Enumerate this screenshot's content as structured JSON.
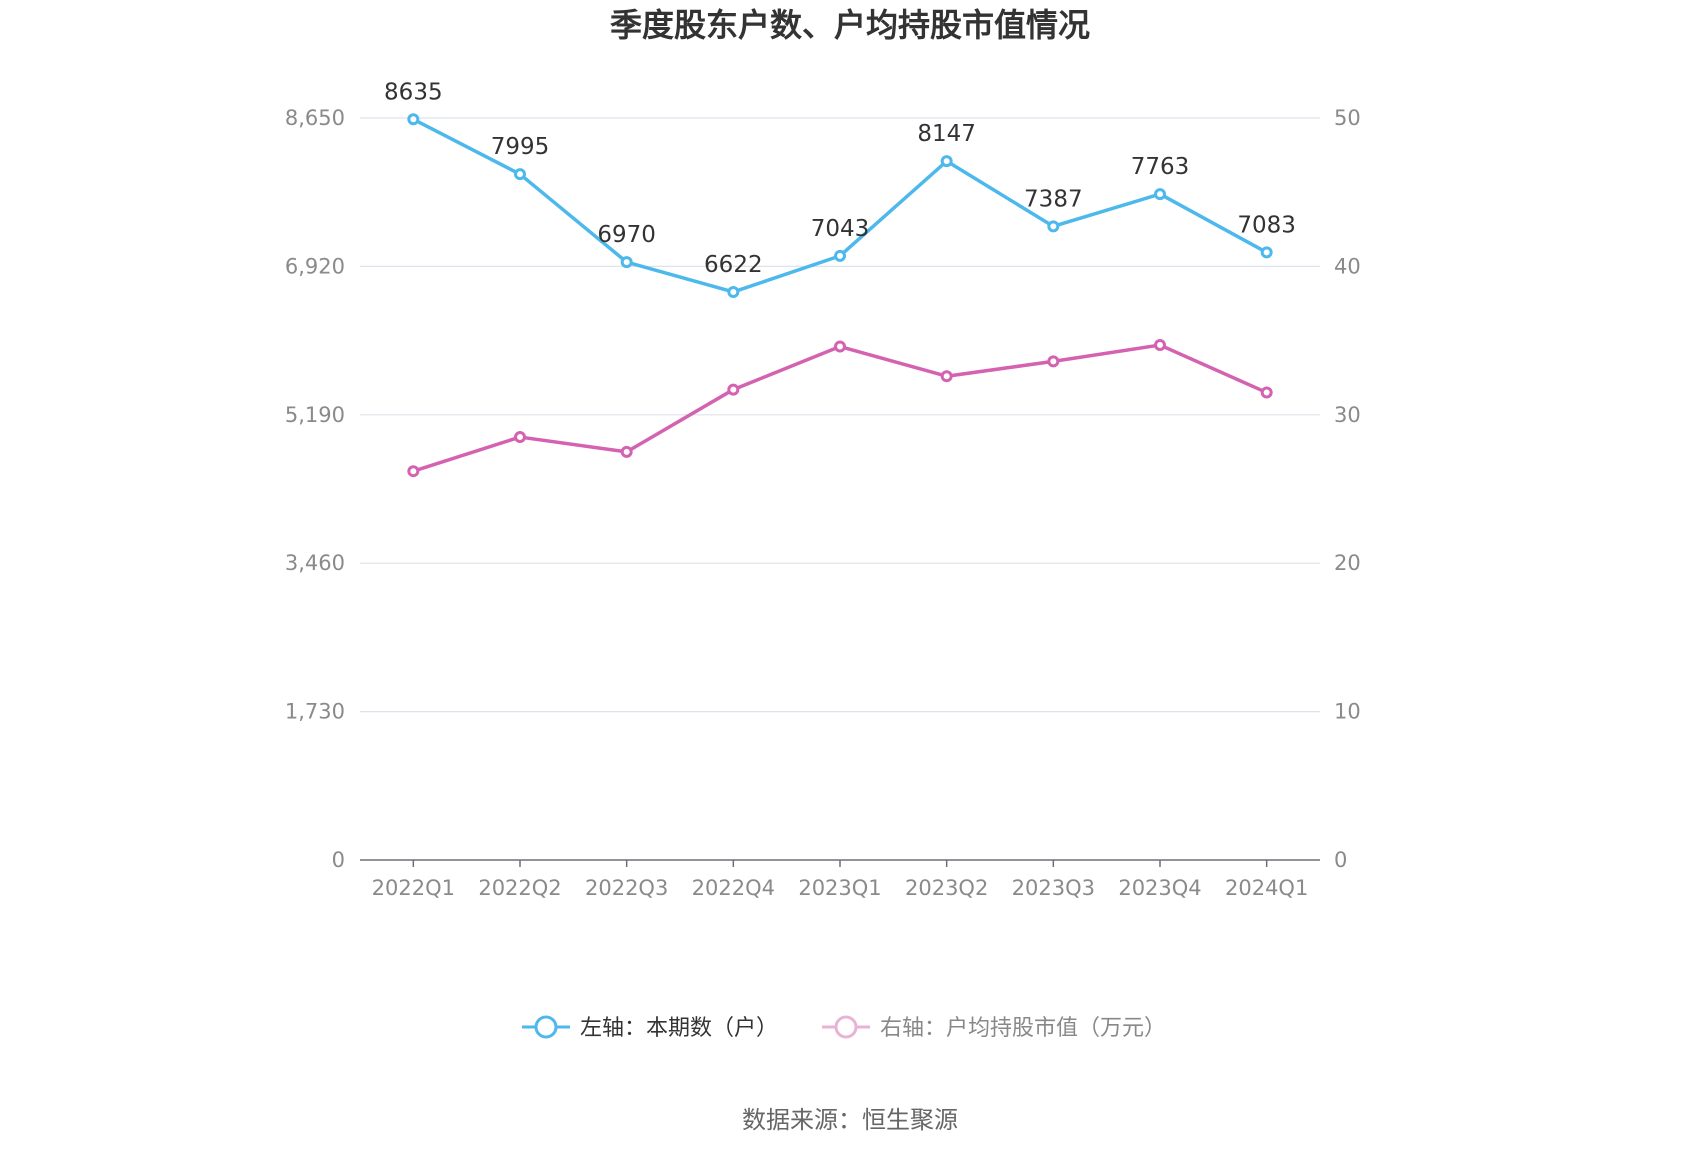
{
  "chart_data": {
    "type": "line",
    "title": "季度股东户数、户均持股市值情况",
    "categories": [
      "2022Q1",
      "2022Q2",
      "2022Q3",
      "2022Q4",
      "2023Q1",
      "2023Q2",
      "2023Q3",
      "2023Q4",
      "2024Q1"
    ],
    "left_axis": {
      "ylim": [
        0,
        8650
      ],
      "ticks": [
        "0",
        "1,730",
        "3,460",
        "5,190",
        "6,920",
        "8,650"
      ],
      "tick_values": [
        0,
        1730,
        3460,
        5190,
        6920,
        8650
      ]
    },
    "right_axis": {
      "ylim": [
        0,
        50
      ],
      "ticks": [
        "0",
        "10",
        "20",
        "30",
        "40",
        "50"
      ],
      "tick_values": [
        0,
        10,
        20,
        30,
        40,
        50
      ]
    },
    "series": [
      {
        "name": "左轴：本期数（户）",
        "axis": "left",
        "color": "#4db8ec",
        "values": [
          8635,
          7995,
          6970,
          6622,
          7043,
          8147,
          7387,
          7763,
          7083
        ],
        "labels": [
          "8635",
          "7995",
          "6970",
          "6622",
          "7043",
          "8147",
          "7387",
          "7763",
          "7083"
        ]
      },
      {
        "name": "右轴：户均持股市值（万元）",
        "axis": "right",
        "color": "#d462b0",
        "values": [
          26.2,
          28.5,
          27.5,
          31.7,
          34.6,
          32.6,
          33.6,
          34.7,
          31.5
        ]
      }
    ],
    "grid": true,
    "legend_position": "bottom"
  },
  "source": "数据来源：恒生聚源"
}
